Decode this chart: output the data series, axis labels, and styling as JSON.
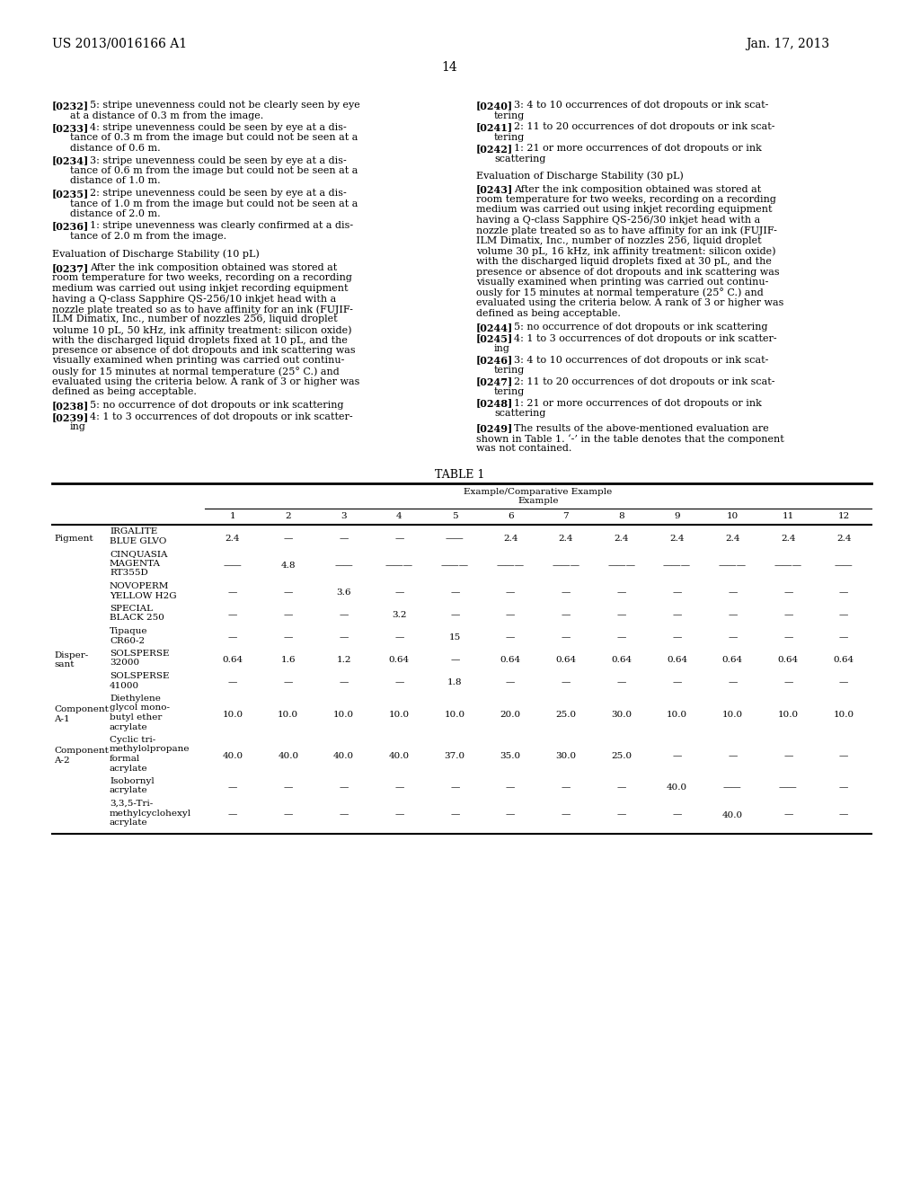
{
  "header_left": "US 2013/0016166 A1",
  "header_right": "Jan. 17, 2013",
  "page_number": "14",
  "left_col_paragraphs": [
    {
      "ref": "[0232]",
      "text": "5: stripe unevenness could not be clearly seen by eye\nat a distance of 0.3 m from the image."
    },
    {
      "ref": "[0233]",
      "text": "4: stripe unevenness could be seen by eye at a dis-\ntance of 0.3 m from the image but could not be seen at a\ndistance of 0.6 m."
    },
    {
      "ref": "[0234]",
      "text": "3: stripe unevenness could be seen by eye at a dis-\ntance of 0.6 m from the image but could not be seen at a\ndistance of 1.0 m."
    },
    {
      "ref": "[0235]",
      "text": "2: stripe unevenness could be seen by eye at a dis-\ntance of 1.0 m from the image but could not be seen at a\ndistance of 2.0 m."
    },
    {
      "ref": "[0236]",
      "text": "1: stripe unevenness was clearly confirmed at a dis-\ntance of 2.0 m from the image."
    }
  ],
  "left_section_head": "Evaluation of Discharge Stability (10 pL)",
  "left_section_para_ref": "[0237]",
  "left_section_para_text": "After the ink composition obtained was stored at\nroom temperature for two weeks, recording on a recording\nmedium was carried out using inkjet recording equipment\nhaving a Q-class Sapphire QS-256/10 inkjet head with a\nnozzle plate treated so as to have affinity for an ink (FUJIF-\nILM Dimatix, Inc., number of nozzles 256, liquid droplet\nvolume 10 pL, 50 kHz, ink affinity treatment: silicon oxide)\nwith the discharged liquid droplets fixed at 10 pL, and the\npresence or absence of dot dropouts and ink scattering was\nvisually examined when printing was carried out continu-\nously for 15 minutes at normal temperature (25° C.) and\nevaluated using the criteria below. A rank of 3 or higher was\ndefined as being acceptable.",
  "left_criteria": [
    {
      "ref": "[0238]",
      "text": "5: no occurrence of dot dropouts or ink scattering"
    },
    {
      "ref": "[0239]",
      "text": "4: 1 to 3 occurrences of dot dropouts or ink scatter-\ning"
    }
  ],
  "right_col_paragraphs": [
    {
      "ref": "[0240]",
      "text": "3: 4 to 10 occurrences of dot dropouts or ink scat-\ntering"
    },
    {
      "ref": "[0241]",
      "text": "2: 11 to 20 occurrences of dot dropouts or ink scat-\ntering"
    },
    {
      "ref": "[0242]",
      "text": "1: 21 or more occurrences of dot dropouts or ink\nscattering"
    }
  ],
  "right_section_head": "Evaluation of Discharge Stability (30 pL)",
  "right_section_para_ref": "[0243]",
  "right_section_para_text": "After the ink composition obtained was stored at\nroom temperature for two weeks, recording on a recording\nmedium was carried out using inkjet recording equipment\nhaving a Q-class Sapphire QS-256/30 inkjet head with a\nnozzle plate treated so as to have affinity for an ink (FUJIF-\nILM Dimatix, Inc., number of nozzles 256, liquid droplet\nvolume 30 pL, 16 kHz, ink affinity treatment: silicon oxide)\nwith the discharged liquid droplets fixed at 30 pL, and the\npresence or absence of dot dropouts and ink scattering was\nvisually examined when printing was carried out continu-\nously for 15 minutes at normal temperature (25° C.) and\nevaluated using the criteria below. A rank of 3 or higher was\ndefined as being acceptable.",
  "right_criteria": [
    {
      "ref": "[0244]",
      "text": "5: no occurrence of dot dropouts or ink scattering"
    },
    {
      "ref": "[0245]",
      "text": "4: 1 to 3 occurrences of dot dropouts or ink scatter-\ning"
    },
    {
      "ref": "[0246]",
      "text": "3: 4 to 10 occurrences of dot dropouts or ink scat-\ntering"
    },
    {
      "ref": "[0247]",
      "text": "2: 11 to 20 occurrences of dot dropouts or ink scat-\ntering"
    },
    {
      "ref": "[0248]",
      "text": "1: 21 or more occurrences of dot dropouts or ink\nscattering"
    }
  ],
  "right_final_para_ref": "[0249]",
  "right_final_para_text": "The results of the above-mentioned evaluation are\nshown in Table 1. ‘-’ in the table denotes that the component\nwas not contained.",
  "table_title": "TABLE 1",
  "table_header_line1": "Example/Comparative Example",
  "table_header_line2": "Example",
  "table_col_numbers": [
    "1",
    "2",
    "3",
    "4",
    "5",
    "6",
    "7",
    "8",
    "9",
    "10",
    "11",
    "12"
  ],
  "table_rows": [
    {
      "category": "Pigment",
      "subcategory": "IRGALITE\nBLUE GLVO",
      "values": [
        "2.4",
        "—",
        "—",
        "—",
        "——",
        "2.4",
        "2.4",
        "2.4",
        "2.4",
        "2.4",
        "2.4",
        "2.4"
      ],
      "row_lines": 2
    },
    {
      "category": "",
      "subcategory": "CINQUASIA\nMAGENTA\nRT355D",
      "values": [
        "——",
        "4.8",
        "——",
        "———",
        "———",
        "———",
        "———",
        "———",
        "———",
        "———",
        "———",
        "——"
      ],
      "row_lines": 3
    },
    {
      "category": "",
      "subcategory": "NOVOPERM\nYELLOW H2G",
      "values": [
        "—",
        "—",
        "3.6",
        "—",
        "—",
        "—",
        "—",
        "—",
        "—",
        "—",
        "—",
        "—"
      ],
      "row_lines": 2
    },
    {
      "category": "",
      "subcategory": "SPECIAL\nBLACK 250",
      "values": [
        "—",
        "—",
        "—",
        "3.2",
        "—",
        "—",
        "—",
        "—",
        "—",
        "—",
        "—",
        "—"
      ],
      "row_lines": 2
    },
    {
      "category": "",
      "subcategory": "Tipaque\nCR60-2",
      "values": [
        "—",
        "—",
        "—",
        "—",
        "15",
        "—",
        "—",
        "—",
        "—",
        "—",
        "—",
        "—"
      ],
      "row_lines": 2
    },
    {
      "category": "Disper-\nsant",
      "subcategory": "SOLSPERSE\n32000",
      "values": [
        "0.64",
        "1.6",
        "1.2",
        "0.64",
        "—",
        "0.64",
        "0.64",
        "0.64",
        "0.64",
        "0.64",
        "0.64",
        "0.64"
      ],
      "row_lines": 2
    },
    {
      "category": "",
      "subcategory": "SOLSPERSE\n41000",
      "values": [
        "—",
        "—",
        "—",
        "—",
        "1.8",
        "—",
        "—",
        "—",
        "—",
        "—",
        "—",
        "—"
      ],
      "row_lines": 2
    },
    {
      "category": "Component\nA-1",
      "subcategory": "Diethylene\nglycol mono-\nbutyl ether\nacrylate",
      "values": [
        "10.0",
        "10.0",
        "10.0",
        "10.0",
        "10.0",
        "20.0",
        "25.0",
        "30.0",
        "10.0",
        "10.0",
        "10.0",
        "10.0"
      ],
      "row_lines": 4
    },
    {
      "category": "Component\nA-2",
      "subcategory": "Cyclic tri-\nmethylolpropane\nformal\nacrylate",
      "values": [
        "40.0",
        "40.0",
        "40.0",
        "40.0",
        "37.0",
        "35.0",
        "30.0",
        "25.0",
        "—",
        "—",
        "—",
        "—"
      ],
      "row_lines": 4
    },
    {
      "category": "",
      "subcategory": "Isobornyl\nacrylate",
      "values": [
        "—",
        "—",
        "—",
        "—",
        "—",
        "—",
        "—",
        "—",
        "40.0",
        "——",
        "——",
        "—"
      ],
      "row_lines": 2
    },
    {
      "category": "",
      "subcategory": "3,3,5-Tri-\nmethylcyclohexyl\nacrylate",
      "values": [
        "—",
        "—",
        "—",
        "—",
        "—",
        "—",
        "—",
        "—",
        "—",
        "40.0",
        "—",
        "—"
      ],
      "row_lines": 3
    }
  ]
}
